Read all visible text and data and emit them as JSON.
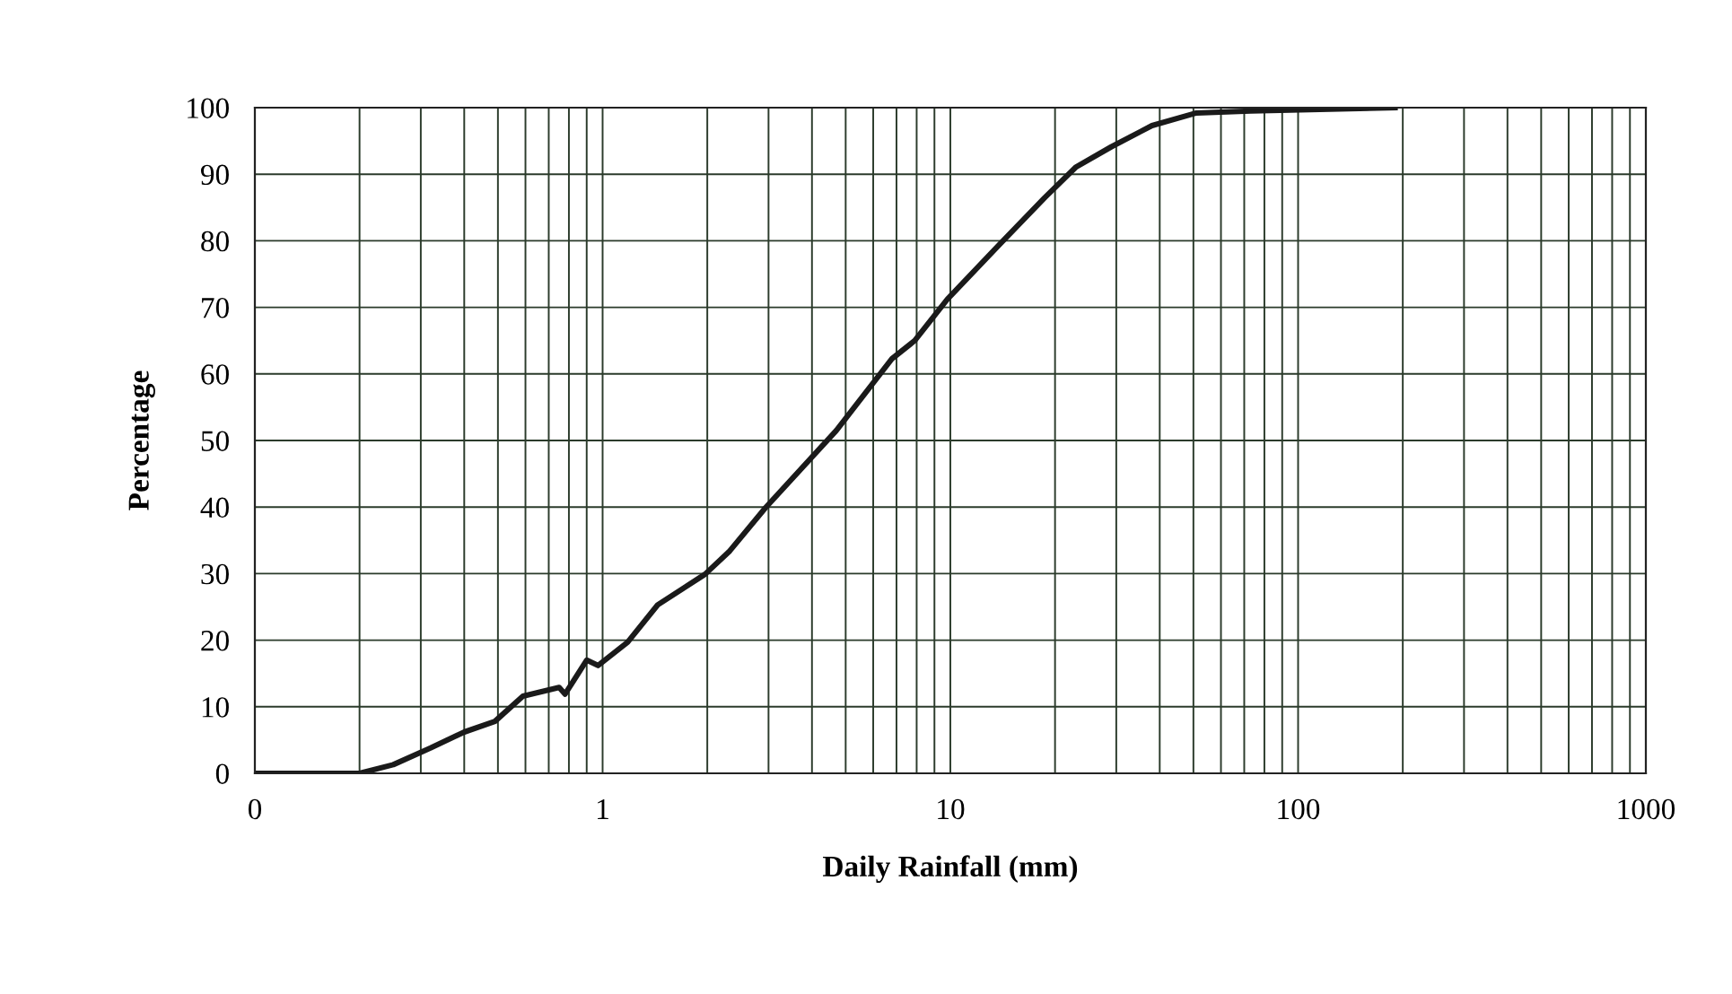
{
  "chart_data": {
    "type": "line",
    "xlabel": "Daily Rainfall (mm)",
    "ylabel": "Percentage",
    "log": "x",
    "grid": true,
    "marker": "none",
    "line_style": "solid",
    "xlim": [
      0.1,
      1000
    ],
    "xticks": [
      {
        "value": 0.1,
        "label": "0"
      },
      1,
      10,
      100,
      1000
    ],
    "ylim": [
      0,
      100
    ],
    "yticks": [
      0,
      10,
      20,
      30,
      40,
      50,
      60,
      70,
      80,
      90,
      100
    ],
    "series": [
      {
        "color": "#1a1a1a",
        "x": [
          0.1,
          0.2,
          0.25,
          0.32,
          0.4,
          0.49,
          0.59,
          0.75,
          0.78,
          0.9,
          0.97,
          1.18,
          1.44,
          1.97,
          2.32,
          2.94,
          4.7,
          6.8,
          7.9,
          9.8,
          13.7,
          18.7,
          23,
          29,
          38,
          51,
          73,
          190
        ],
        "values": [
          0,
          0,
          1.3,
          3.8,
          6.2,
          7.8,
          11.6,
          12.9,
          11.9,
          17,
          16.2,
          19.7,
          25.3,
          29.9,
          33.4,
          39.9,
          51.5,
          62.3,
          65,
          71.2,
          79.2,
          86.5,
          91.1,
          94.1,
          97.3,
          99.2,
          99.5,
          100
        ]
      }
    ]
  }
}
